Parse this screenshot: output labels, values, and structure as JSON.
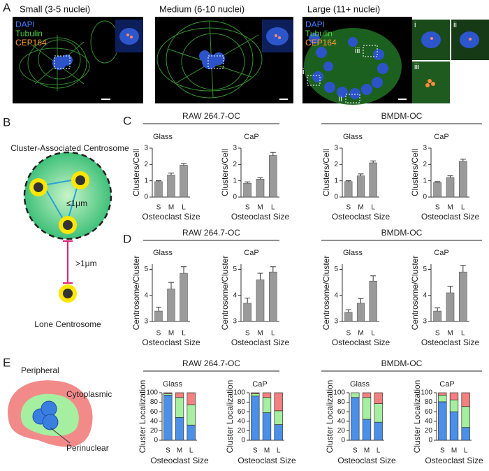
{
  "panel_a": {
    "label": "A",
    "images": [
      {
        "title": "Small (3-5 nuclei)",
        "stains": [
          "DAPI",
          "Tubulin",
          "CEP164"
        ]
      },
      {
        "title": "Medium (6-10 nuclei)"
      },
      {
        "title": "Large (11+ nuclei)",
        "stains": [
          "DAPI",
          "Tubulin",
          "CEP164"
        ],
        "regions": [
          "i",
          "ii",
          "iii"
        ],
        "insets": [
          "i",
          "ii",
          "iii"
        ]
      }
    ]
  },
  "panel_b": {
    "label": "B",
    "title": "Cluster-Associated Centrosome",
    "near": "≤1μm",
    "far": ">1μm",
    "lone": "Lone Centrosome"
  },
  "panel_c": {
    "label": "C",
    "groups": [
      "RAW 264.7-OC",
      "BMDM-OC"
    ]
  },
  "panel_d": {
    "label": "D",
    "groups": [
      "RAW 264.7-OC",
      "BMDM-OC"
    ]
  },
  "panel_e": {
    "label": "E",
    "peripheral": "Peripheral",
    "cytoplasmic": "Cytoplasmic",
    "perinuclear": "Perinuclear",
    "groups": [
      "RAW 264.7-OC",
      "BMDM-OC"
    ]
  },
  "chart_data": [
    {
      "type": "bar",
      "title": "Glass",
      "categories": [
        "S",
        "M",
        "L"
      ],
      "values": [
        0.95,
        1.35,
        1.95
      ],
      "errors": [
        0.05,
        0.12,
        0.1
      ],
      "color": "#9a9a9a",
      "ylim": [
        0,
        3
      ],
      "yticks": [
        0,
        1,
        2,
        3
      ],
      "ylabel": "Clusters/Cell",
      "xlabel": "Osteoclast Size"
    },
    {
      "type": "bar",
      "title": "CaP",
      "categories": [
        "S",
        "M",
        "L"
      ],
      "values": [
        0.85,
        1.1,
        2.55
      ],
      "errors": [
        0.08,
        0.08,
        0.18
      ],
      "color": "#9a9a9a",
      "ylim": [
        0,
        3
      ],
      "yticks": [
        0,
        1,
        2,
        3
      ],
      "ylabel": "Clusters/Cell",
      "xlabel": "Osteoclast Size"
    },
    {
      "type": "bar",
      "title": "Glass",
      "categories": [
        "S",
        "M",
        "L"
      ],
      "values": [
        0.95,
        1.3,
        2.1
      ],
      "errors": [
        0.05,
        0.12,
        0.12
      ],
      "color": "#9a9a9a",
      "ylim": [
        0,
        3
      ],
      "yticks": [
        0,
        1,
        2,
        3
      ],
      "ylabel": "Clusters/Cell",
      "xlabel": "Osteoclast Size"
    },
    {
      "type": "bar",
      "title": "CaP",
      "categories": [
        "S",
        "M",
        "L"
      ],
      "values": [
        0.9,
        1.2,
        2.2
      ],
      "errors": [
        0.05,
        0.1,
        0.12
      ],
      "color": "#9a9a9a",
      "ylim": [
        0,
        3
      ],
      "yticks": [
        0,
        1,
        2,
        3
      ],
      "ylabel": "Clusters/Cell",
      "xlabel": "Osteoclast Size"
    },
    {
      "type": "bar",
      "title": "Glass",
      "categories": [
        "S",
        "M",
        "L"
      ],
      "values": [
        3.4,
        4.25,
        4.85
      ],
      "errors": [
        0.15,
        0.25,
        0.25
      ],
      "color": "#9a9a9a",
      "ylim": [
        3,
        5.2
      ],
      "yticks": [
        3,
        4,
        5
      ],
      "ylabel": "Centrosome/Cluster",
      "xlabel": "Osteoclast Size"
    },
    {
      "type": "bar",
      "title": "CaP",
      "categories": [
        "S",
        "M",
        "L"
      ],
      "values": [
        3.7,
        4.6,
        4.9
      ],
      "errors": [
        0.2,
        0.25,
        0.2
      ],
      "color": "#9a9a9a",
      "ylim": [
        3,
        5.2
      ],
      "yticks": [
        3,
        4,
        5
      ],
      "ylabel": "Centrosome/Cluster",
      "xlabel": "Osteoclast Size"
    },
    {
      "type": "bar",
      "title": "Glass",
      "categories": [
        "S",
        "M",
        "L"
      ],
      "values": [
        3.35,
        3.7,
        4.55
      ],
      "errors": [
        0.1,
        0.18,
        0.2
      ],
      "color": "#9a9a9a",
      "ylim": [
        3,
        5.2
      ],
      "yticks": [
        3,
        4,
        5
      ],
      "ylabel": "Centrosome/Cluster",
      "xlabel": "Osteoclast Size"
    },
    {
      "type": "bar",
      "title": "CaP",
      "categories": [
        "S",
        "M",
        "L"
      ],
      "values": [
        3.4,
        4.1,
        4.9
      ],
      "errors": [
        0.12,
        0.25,
        0.25
      ],
      "color": "#9a9a9a",
      "ylim": [
        3,
        5.2
      ],
      "yticks": [
        3,
        4,
        5
      ],
      "ylabel": "Centrosome/Cluster",
      "xlabel": "Osteoclast Size"
    },
    {
      "type": "stacked_bar",
      "title": "Glass",
      "categories": [
        "S",
        "M",
        "L"
      ],
      "series": [
        {
          "color": "#4a90e8",
          "values": [
            95,
            48,
            32
          ]
        },
        {
          "color": "#a6eea0",
          "values": [
            3,
            42,
            43
          ]
        },
        {
          "color": "#f48080",
          "values": [
            2,
            10,
            25
          ]
        }
      ],
      "ylim": [
        0,
        100
      ],
      "yticks": [
        0,
        20,
        40,
        60,
        80,
        100
      ],
      "ylabel": "Cluster Localization",
      "xlabel": "Osteoclast Size"
    },
    {
      "type": "stacked_bar",
      "title": "CaP",
      "categories": [
        "S",
        "M",
        "L"
      ],
      "series": [
        {
          "color": "#4a90e8",
          "values": [
            93,
            58,
            33
          ]
        },
        {
          "color": "#a6eea0",
          "values": [
            5,
            32,
            29
          ]
        },
        {
          "color": "#f48080",
          "values": [
            2,
            10,
            38
          ]
        }
      ],
      "ylim": [
        0,
        100
      ],
      "yticks": [
        0,
        20,
        40,
        60,
        80,
        100
      ],
      "ylabel": "Cluster Localization",
      "xlabel": "Osteoclast Size"
    },
    {
      "type": "stacked_bar",
      "title": "Glass",
      "categories": [
        "S",
        "M",
        "L"
      ],
      "series": [
        {
          "color": "#4a90e8",
          "values": [
            90,
            44,
            38
          ]
        },
        {
          "color": "#a6eea0",
          "values": [
            10,
            46,
            39
          ]
        },
        {
          "color": "#f48080",
          "values": [
            0,
            10,
            23
          ]
        }
      ],
      "ylim": [
        0,
        100
      ],
      "yticks": [
        0,
        20,
        40,
        60,
        80,
        100
      ],
      "ylabel": "Cluster Localization",
      "xlabel": "Osteoclast Size"
    },
    {
      "type": "stacked_bar",
      "title": "CaP",
      "categories": [
        "S",
        "M",
        "L"
      ],
      "series": [
        {
          "color": "#4a90e8",
          "values": [
            81,
            60,
            27
          ]
        },
        {
          "color": "#a6eea0",
          "values": [
            14,
            25,
            44
          ]
        },
        {
          "color": "#f48080",
          "values": [
            5,
            15,
            29
          ]
        }
      ],
      "ylim": [
        0,
        100
      ],
      "yticks": [
        0,
        20,
        40,
        60,
        80,
        100
      ],
      "ylabel": "Cluster Localization",
      "xlabel": "Osteoclast Size"
    }
  ]
}
